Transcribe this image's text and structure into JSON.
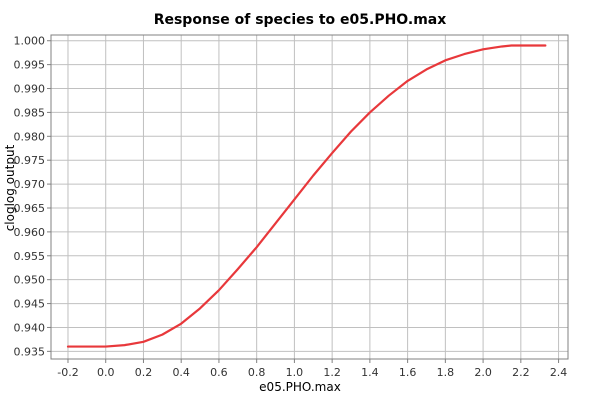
{
  "chart_data": {
    "type": "line",
    "title": "Response of species to e05.PHO.max",
    "xlabel": "e05.PHO.max",
    "ylabel": "cloglog output",
    "xlim": [
      -0.29,
      2.45
    ],
    "ylim": [
      0.9334,
      1.0012
    ],
    "x_ticks": [
      -0.2,
      0.0,
      0.2,
      0.4,
      0.6,
      0.8,
      1.0,
      1.2,
      1.4,
      1.6,
      1.8,
      2.0,
      2.2,
      2.4
    ],
    "y_ticks": [
      0.935,
      0.94,
      0.945,
      0.95,
      0.955,
      0.96,
      0.965,
      0.97,
      0.975,
      0.98,
      0.985,
      0.99,
      0.995,
      1.0
    ],
    "x_tick_labels": [
      "-0.2",
      "0.0",
      "0.2",
      "0.4",
      "0.6",
      "0.8",
      "1.0",
      "1.2",
      "1.4",
      "1.6",
      "1.8",
      "2.0",
      "2.2",
      "2.4"
    ],
    "y_tick_labels": [
      "0.935",
      "0.940",
      "0.945",
      "0.950",
      "0.955",
      "0.960",
      "0.965",
      "0.970",
      "0.975",
      "0.980",
      "0.985",
      "0.990",
      "0.995",
      "1.000"
    ],
    "grid": true,
    "colors": {
      "line": "#e8383b",
      "grid": "#c0c0c0",
      "axis": "#808080"
    },
    "series": [
      {
        "x": [
          -0.2,
          -0.1,
          0.0,
          0.1,
          0.2,
          0.3,
          0.4,
          0.5,
          0.6,
          0.7,
          0.8,
          0.9,
          1.0,
          1.1,
          1.2,
          1.3,
          1.4,
          1.5,
          1.6,
          1.7,
          1.8,
          1.9,
          2.0,
          2.1,
          2.15,
          2.2,
          2.33
        ],
        "y": [
          0.936,
          0.936,
          0.936,
          0.9363,
          0.937,
          0.9385,
          0.9408,
          0.944,
          0.9478,
          0.9522,
          0.9568,
          0.9618,
          0.9668,
          0.9718,
          0.9765,
          0.981,
          0.985,
          0.9885,
          0.9916,
          0.994,
          0.9959,
          0.9972,
          0.9982,
          0.9988,
          0.999,
          0.999,
          0.999
        ]
      }
    ]
  }
}
